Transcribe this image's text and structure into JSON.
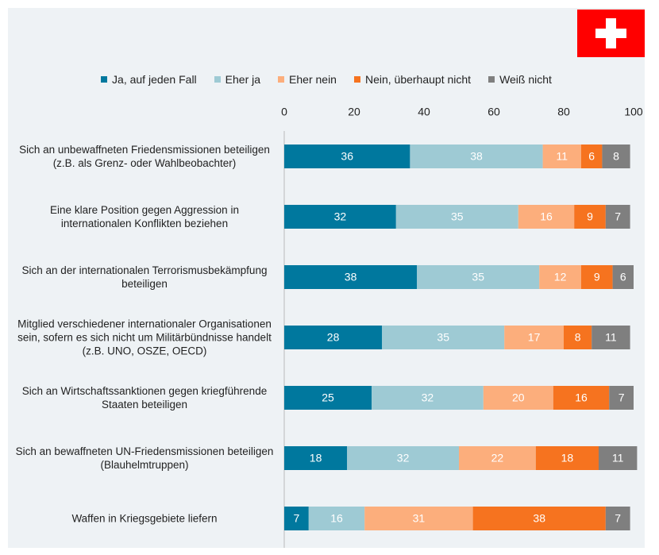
{
  "chart_data": {
    "type": "bar",
    "orientation": "horizontal",
    "stacked": true,
    "legend": "top",
    "categories": [
      "Sich an unbewaffneten Friedensmissionen beteiligen (z.B. als Grenz- oder Wahlbeobachter)",
      "Eine klare Position gegen Aggression in internationalen Konflikten beziehen",
      "Sich an der internationalen Terrorismusbekämpfung beteiligen",
      "Mitglied verschiedener internationaler Organisationen sein, sofern es sich nicht um Militärbündnisse handelt (z.B. UNO, OSZE, OECD)",
      "Sich an Wirtschaftssanktionen gegen kriegführende Staaten beteiligen",
      "Sich an bewaffneten UN-Friedensmissionen beteiligen (Blauhelmtruppen)",
      "Waffen in Kriegsgebiete liefern"
    ],
    "series": [
      {
        "name": "Ja, auf jeden Fall",
        "color": "#00789e",
        "values": [
          36,
          32,
          38,
          28,
          25,
          18,
          7
        ]
      },
      {
        "name": "Eher ja",
        "color": "#9ecad4",
        "values": [
          38,
          35,
          35,
          35,
          32,
          32,
          16
        ]
      },
      {
        "name": "Eher nein",
        "color": "#fcae7c",
        "values": [
          11,
          16,
          12,
          17,
          20,
          22,
          31
        ]
      },
      {
        "name": "Nein, überhaupt nicht",
        "color": "#f6731f",
        "values": [
          6,
          9,
          9,
          8,
          16,
          18,
          38
        ]
      },
      {
        "name": "Weiß nicht",
        "color": "#7f7f7f",
        "values": [
          8,
          7,
          6,
          11,
          7,
          11,
          7
        ]
      }
    ],
    "xlim": [
      0,
      100
    ],
    "xticks": [
      0,
      20,
      40,
      60,
      80,
      100
    ]
  }
}
